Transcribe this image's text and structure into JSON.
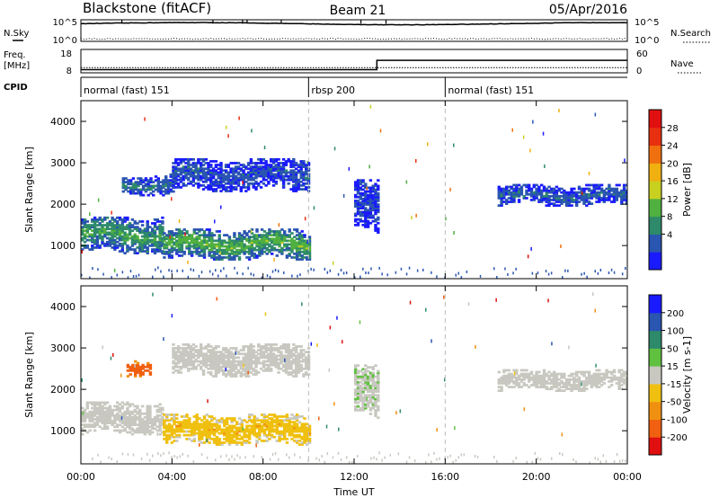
{
  "header": {
    "station": "Blackstone (fitACF)",
    "beam": "Beam 21",
    "date": "05/Apr/2016"
  },
  "noise_panel": {
    "left_label": "N.Sky",
    "right_label": "N.Search",
    "left_ticks": [
      "10^5",
      "10^0"
    ],
    "right_ticks": [
      "10^5",
      "10^0"
    ]
  },
  "freq_panel": {
    "left_label_1": "Freq.",
    "left_label_2": "[MHz]",
    "right_label": "Nave",
    "left_ticks": [
      "18",
      "8"
    ],
    "right_ticks": [
      "60",
      "0"
    ]
  },
  "cpid_panel": {
    "label": "CPID",
    "segments": [
      {
        "name": "normal (fast) 151",
        "start_hour": 0
      },
      {
        "name": "rbsp 200",
        "start_hour": 10
      },
      {
        "name": "normal (fast) 151",
        "start_hour": 16
      }
    ]
  },
  "colors": {
    "power": [
      "#1a1aff",
      "#2a55b0",
      "#2e8a6a",
      "#50b040",
      "#c8d020",
      "#f0b010",
      "#f07010",
      "#e83010",
      "#e01010"
    ],
    "velocity": [
      "#e01010",
      "#f06010",
      "#f09010",
      "#f0c010",
      "#c8c8c0",
      "#60c040",
      "#2e8a6a",
      "#2a55b0",
      "#1a1aff"
    ]
  },
  "chart_data": {
    "type": "heatmap",
    "xlabel": "Time UT",
    "x_range_hours": [
      0,
      24
    ],
    "x_ticks": [
      "00:00",
      "04:00",
      "08:00",
      "12:00",
      "16:00",
      "20:00",
      "00:00"
    ],
    "ylabel": "Slant Range [km]",
    "ylim": [
      200,
      4500
    ],
    "y_ticks": [
      "1000",
      "2000",
      "3000",
      "4000"
    ],
    "panels": [
      {
        "name": "power",
        "colorbar_label": "Power [dB]",
        "colorbar_ticks": [
          "28",
          "24",
          "20",
          "16",
          "12",
          "8",
          "4"
        ],
        "bands": [
          {
            "t0": 0.0,
            "t1": 3.6,
            "r0": 800,
            "r1": 1700,
            "mean": 12
          },
          {
            "t0": 3.6,
            "t1": 10.0,
            "r0": 650,
            "r1": 1400,
            "mean": 14
          },
          {
            "t0": 1.8,
            "t1": 4.0,
            "r0": 2200,
            "r1": 2700,
            "mean": 8
          },
          {
            "t0": 4.0,
            "t1": 10.0,
            "r0": 2300,
            "r1": 3100,
            "mean": 6
          },
          {
            "t0": 12.0,
            "t1": 13.0,
            "r0": 1300,
            "r1": 2600,
            "mean": 5
          },
          {
            "t0": 18.3,
            "t1": 24.0,
            "r0": 1950,
            "r1": 2450,
            "mean": 7
          }
        ]
      },
      {
        "name": "velocity",
        "colorbar_label": "Velocity [m s-1]",
        "colorbar_ticks": [
          "200",
          "100",
          "50",
          "15",
          "-15",
          "-50",
          "-100",
          "-200"
        ],
        "bands": [
          {
            "t0": 0.0,
            "t1": 3.6,
            "r0": 900,
            "r1": 1700,
            "mean": 0
          },
          {
            "t0": 3.6,
            "t1": 10.0,
            "r0": 650,
            "r1": 1400,
            "mean": -40
          },
          {
            "t0": 2.0,
            "t1": 3.0,
            "r0": 2300,
            "r1": 2700,
            "mean": -200
          },
          {
            "t0": 4.0,
            "t1": 10.0,
            "r0": 2300,
            "r1": 3100,
            "mean": 0
          },
          {
            "t0": 12.0,
            "t1": 13.0,
            "r0": 1300,
            "r1": 2600,
            "mean": 10
          },
          {
            "t0": 18.3,
            "t1": 24.0,
            "r0": 1950,
            "r1": 2450,
            "mean": 0
          }
        ]
      }
    ],
    "noise_sky_level": 4.1,
    "noise_search_level": 0.6,
    "freq_mhz": 10.2,
    "nave_before_13h": 8,
    "nave_after_13h": 32,
    "nave_step_hour": 13.0
  }
}
